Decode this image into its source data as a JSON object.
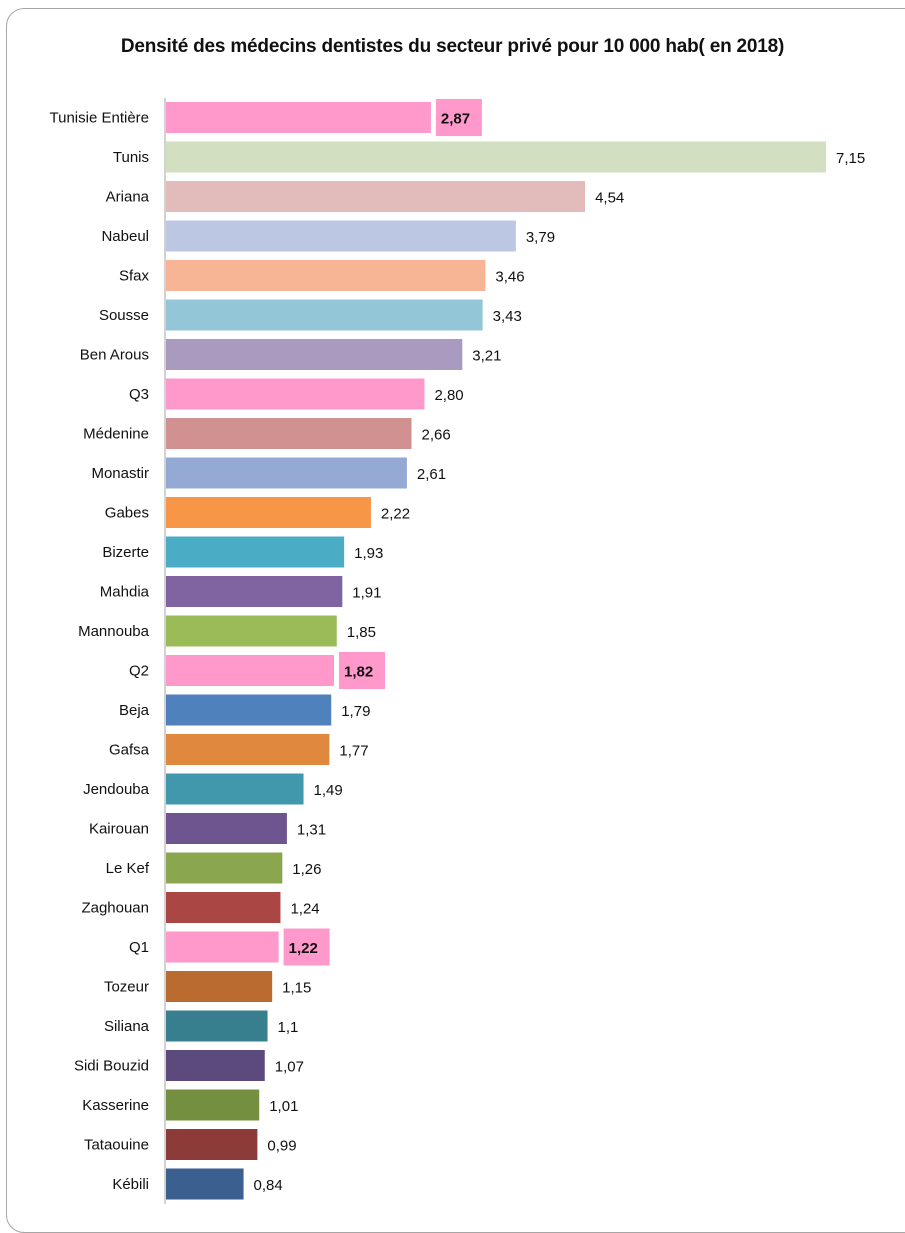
{
  "chart_data": {
    "type": "bar",
    "orientation": "horizontal",
    "title": "Densité des médecins dentistes du secteur privé pour 10 000 hab( en 2018)",
    "xlabel": "",
    "ylabel": "",
    "xlim": [
      0,
      7.5
    ],
    "grid": false,
    "legend": "none",
    "categories": [
      "Tunisie  Entière",
      "Tunis",
      "Ariana",
      "Nabeul",
      "Sfax",
      "Sousse",
      "Ben Arous",
      "Q3",
      "Médenine",
      "Monastir",
      "Gabes",
      "Bizerte",
      "Mahdia",
      "Mannouba",
      "Q2",
      "Beja",
      "Gafsa",
      "Jendouba",
      "Kairouan",
      "Le Kef",
      "Zaghouan",
      "Q1",
      "Tozeur",
      "Siliana",
      "Sidi Bouzid",
      "Kasserine",
      "Tataouine",
      "Kébili"
    ],
    "values": [
      2.87,
      7.15,
      4.54,
      3.79,
      3.46,
      3.43,
      3.21,
      2.8,
      2.66,
      2.61,
      2.22,
      1.93,
      1.91,
      1.85,
      1.82,
      1.79,
      1.77,
      1.49,
      1.31,
      1.26,
      1.24,
      1.22,
      1.15,
      1.1,
      1.07,
      1.01,
      0.99,
      0.84
    ],
    "value_labels": [
      "2,87",
      "7,15",
      "4,54",
      "3,79",
      "3,46",
      "3,43",
      "3,21",
      "2,80",
      "2,66",
      "2,61",
      "2,22",
      "1,93",
      "1,91",
      "1,85",
      "1,82",
      "1,79",
      "1,77",
      "1,49",
      "1,31",
      "1,26",
      "1,24",
      "1,22",
      "1,15",
      "1,1",
      "1,07",
      "1,01",
      "0,99",
      "0,84"
    ],
    "colors": [
      "#ff99cc",
      "#d2dfc0",
      "#e2bbbb",
      "#bcc8e3",
      "#f8b595",
      "#93c6d6",
      "#a99bc0",
      "#ff99cc",
      "#d19191",
      "#94aad5",
      "#f79646",
      "#4bacc6",
      "#8064a2",
      "#9bbb59",
      "#ff99cc",
      "#4f81bd",
      "#e0883e",
      "#4198ad",
      "#6f558f",
      "#8aa74f",
      "#aa4643",
      "#ff99cc",
      "#b96b30",
      "#377f8f",
      "#5d4a7c",
      "#738f3f",
      "#8c3b39",
      "#3b5f8e"
    ],
    "highlighted_labels": [
      true,
      false,
      false,
      false,
      false,
      false,
      false,
      false,
      false,
      false,
      false,
      false,
      false,
      false,
      true,
      false,
      false,
      false,
      false,
      false,
      false,
      true,
      false,
      false,
      false,
      false,
      false,
      false
    ],
    "highlight_label_color": "#ff99cc"
  }
}
